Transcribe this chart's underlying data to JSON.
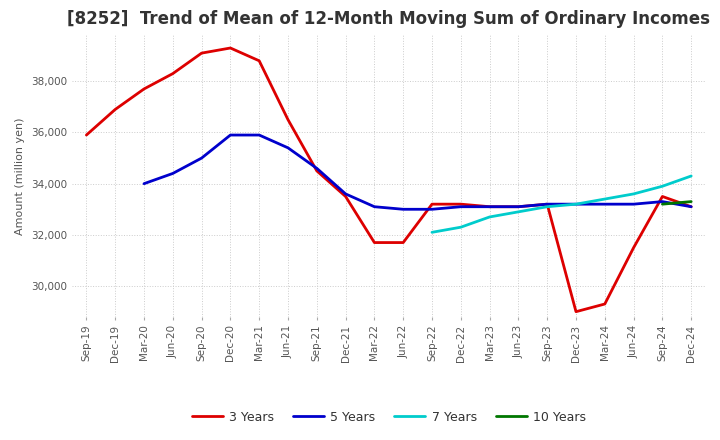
{
  "title": "[8252]  Trend of Mean of 12-Month Moving Sum of Ordinary Incomes",
  "ylabel": "Amount (million yen)",
  "ylim": [
    28800,
    39800
  ],
  "yticks": [
    30000,
    32000,
    34000,
    36000,
    38000
  ],
  "line_colors": {
    "3y": "#dd0000",
    "5y": "#0000cc",
    "7y": "#00cccc",
    "10y": "#007700"
  },
  "legend_labels": [
    "3 Years",
    "5 Years",
    "7 Years",
    "10 Years"
  ],
  "x_labels": [
    "Sep-19",
    "Dec-19",
    "Mar-20",
    "Jun-20",
    "Sep-20",
    "Dec-20",
    "Mar-21",
    "Jun-21",
    "Sep-21",
    "Dec-21",
    "Mar-22",
    "Jun-22",
    "Sep-22",
    "Dec-22",
    "Mar-23",
    "Jun-23",
    "Sep-23",
    "Dec-23",
    "Mar-24",
    "Jun-24",
    "Sep-24",
    "Dec-24"
  ],
  "data_3y": [
    35900,
    36900,
    37700,
    38300,
    39100,
    39300,
    38800,
    36500,
    34500,
    33500,
    31700,
    31700,
    33200,
    33200,
    33100,
    33100,
    33200,
    29000,
    29300,
    31500,
    33500,
    33100
  ],
  "data_5y": [
    null,
    null,
    34000,
    34400,
    35000,
    35900,
    35900,
    35400,
    34600,
    33600,
    33100,
    33000,
    33000,
    33100,
    33100,
    33100,
    33200,
    33200,
    33200,
    33200,
    33300,
    33100
  ],
  "data_7y": [
    null,
    null,
    null,
    null,
    null,
    null,
    null,
    null,
    null,
    null,
    null,
    null,
    32100,
    32300,
    32700,
    32900,
    33100,
    33200,
    33400,
    33600,
    33900,
    34300
  ],
  "data_10y": [
    null,
    null,
    null,
    null,
    null,
    null,
    null,
    null,
    null,
    null,
    null,
    null,
    null,
    null,
    null,
    null,
    null,
    null,
    null,
    null,
    33200,
    33300
  ],
  "background_color": "#ffffff",
  "grid_color": "#cccccc",
  "title_fontsize": 12,
  "ylabel_fontsize": 8,
  "tick_fontsize": 7.5,
  "legend_fontsize": 9,
  "line_width": 2.0
}
